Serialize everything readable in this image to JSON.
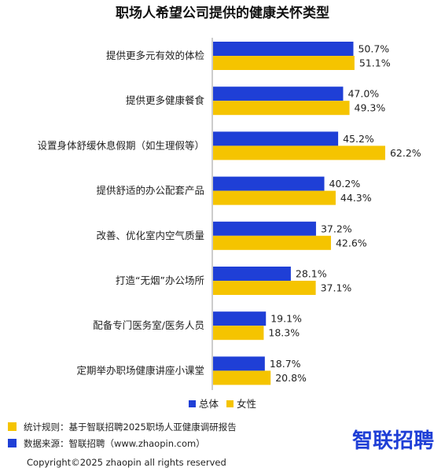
{
  "chart_data": {
    "type": "bar",
    "orientation": "horizontal",
    "title": "职场人希望公司提供的健康关怀类型",
    "categories": [
      "提供更多元有效的体检",
      "提供更多健康餐食",
      "设置身体舒缓休息假期（如生理假等）",
      "提供舒适的办公配套产品",
      "改善、优化室内空气质量",
      "打造“无烟”办公场所",
      "配备专门医务室/医务人员",
      "定期举办职场健康讲座小课堂"
    ],
    "series": [
      {
        "name": "总体",
        "color": "#1f3fd6",
        "values": [
          50.7,
          47.0,
          45.2,
          40.2,
          37.2,
          28.1,
          19.1,
          18.7
        ]
      },
      {
        "name": "女性",
        "color": "#f5c400",
        "values": [
          51.1,
          49.3,
          62.2,
          44.3,
          42.6,
          37.1,
          18.3,
          20.8
        ]
      }
    ],
    "value_labels": {
      "总体": [
        "50.7%",
        "47.0%",
        "45.2%",
        "40.2%",
        "37.2%",
        "28.1%",
        "19.1%",
        "18.7%"
      ],
      "女性": [
        "51.1%",
        "49.3%",
        "62.2%",
        "44.3%",
        "42.6%",
        "37.1%",
        "18.3%",
        "20.8%"
      ]
    },
    "legend_position": "bottom-right",
    "grid": false
  },
  "footer": {
    "rule_text": "统计规则：基于智联招聘2025职场人亚健康调研报告",
    "source_text": "数据来源：智联招聘（www.zhaopin.com）",
    "copyright_text": "Copyright©2025 zhaopin all rights reserved",
    "brand_text": "智联招聘",
    "rule_marker_color": "#f5c400",
    "source_marker_color": "#1f3fd6"
  }
}
